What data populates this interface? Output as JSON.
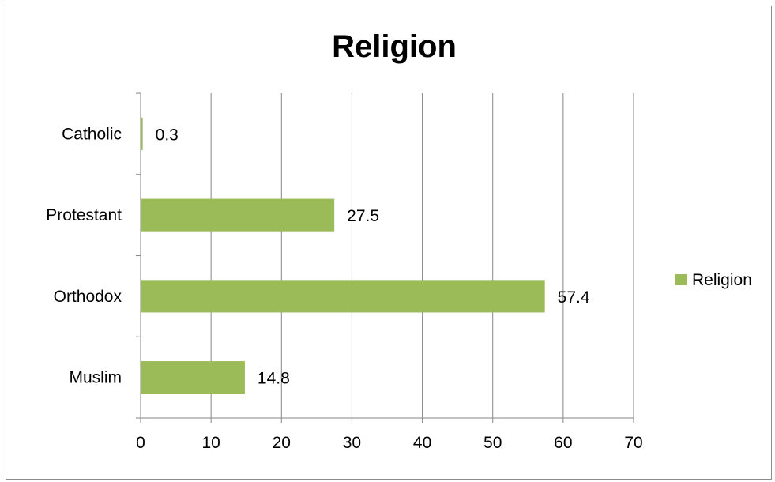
{
  "chart_data": {
    "type": "bar",
    "orientation": "horizontal",
    "title": "Religion",
    "categories": [
      "Muslim",
      "Orthodox",
      "Protestant",
      "Catholic"
    ],
    "series": [
      {
        "name": "Religion",
        "values": [
          14.8,
          57.4,
          27.5,
          0.3
        ],
        "color": "#9bbb59"
      }
    ],
    "xlim": [
      0,
      70
    ],
    "x_ticks": [
      "0",
      "10",
      "20",
      "30",
      "40",
      "50",
      "60",
      "70"
    ],
    "data_labels": [
      "14.8",
      "57.4",
      "27.5",
      "0.3"
    ],
    "grid": "vertical",
    "legend": "right"
  }
}
